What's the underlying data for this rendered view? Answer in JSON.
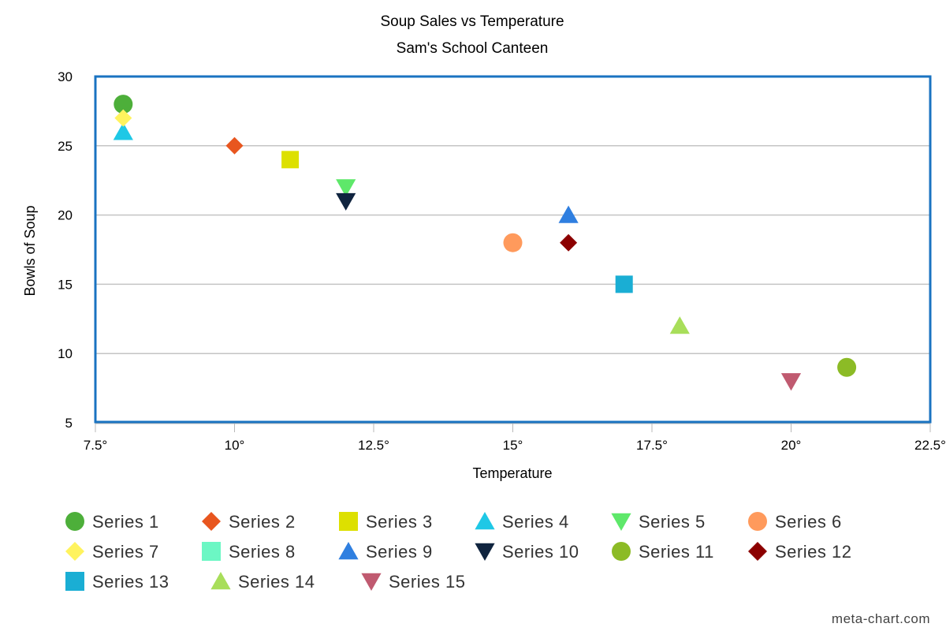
{
  "watermark": "meta-chart.com",
  "chart_data": {
    "type": "scatter",
    "title": "Soup Sales vs Temperature",
    "subtitle": "Sam's School Canteen",
    "xlabel": "Temperature",
    "ylabel": "Bowls of Soup",
    "xlim": [
      7.5,
      22.5
    ],
    "ylim": [
      5,
      30
    ],
    "x_ticks": [
      "7.5°",
      "10°",
      "12.5°",
      "15°",
      "17.5°",
      "20°",
      "22.5°"
    ],
    "y_ticks": [
      "5",
      "10",
      "15",
      "20",
      "25",
      "30"
    ],
    "grid": "horizontal",
    "legend_position": "bottom",
    "plot_border_color": "#1a73c1",
    "series": [
      {
        "name": "Series 1",
        "marker": "circle",
        "color": "#4daf3a",
        "points": [
          [
            8,
            28
          ]
        ]
      },
      {
        "name": "Series 2",
        "marker": "diamond",
        "color": "#e8561f",
        "points": [
          [
            10,
            25
          ]
        ]
      },
      {
        "name": "Series 3",
        "marker": "square",
        "color": "#dde000",
        "points": [
          [
            11,
            24
          ]
        ]
      },
      {
        "name": "Series 4",
        "marker": "triangle-up",
        "color": "#1ec8e6",
        "points": [
          [
            8,
            26
          ]
        ]
      },
      {
        "name": "Series 5",
        "marker": "triangle-down",
        "color": "#5ee86a",
        "points": [
          [
            12,
            22
          ]
        ]
      },
      {
        "name": "Series 6",
        "marker": "circle",
        "color": "#ff9a5c",
        "points": [
          [
            15,
            18
          ]
        ]
      },
      {
        "name": "Series 7",
        "marker": "diamond",
        "color": "#fff35e",
        "points": [
          [
            8,
            27
          ]
        ]
      },
      {
        "name": "Series 8",
        "marker": "square",
        "color": "#6cf7c4",
        "points": []
      },
      {
        "name": "Series 9",
        "marker": "triangle-up",
        "color": "#2f7fe0",
        "points": [
          [
            16,
            20
          ]
        ]
      },
      {
        "name": "Series 10",
        "marker": "triangle-down",
        "color": "#10243f",
        "points": [
          [
            12,
            21
          ]
        ]
      },
      {
        "name": "Series 11",
        "marker": "circle",
        "color": "#8cbb26",
        "points": [
          [
            21,
            9
          ]
        ]
      },
      {
        "name": "Series 12",
        "marker": "diamond",
        "color": "#8c0000",
        "points": [
          [
            16,
            18
          ]
        ]
      },
      {
        "name": "Series 13",
        "marker": "square",
        "color": "#1aaed4",
        "points": [
          [
            17,
            15
          ]
        ]
      },
      {
        "name": "Series 14",
        "marker": "triangle-up",
        "color": "#a8de5a",
        "points": [
          [
            18,
            12
          ]
        ]
      },
      {
        "name": "Series 15",
        "marker": "triangle-down",
        "color": "#c05a70",
        "points": [
          [
            20,
            8
          ]
        ]
      }
    ]
  }
}
